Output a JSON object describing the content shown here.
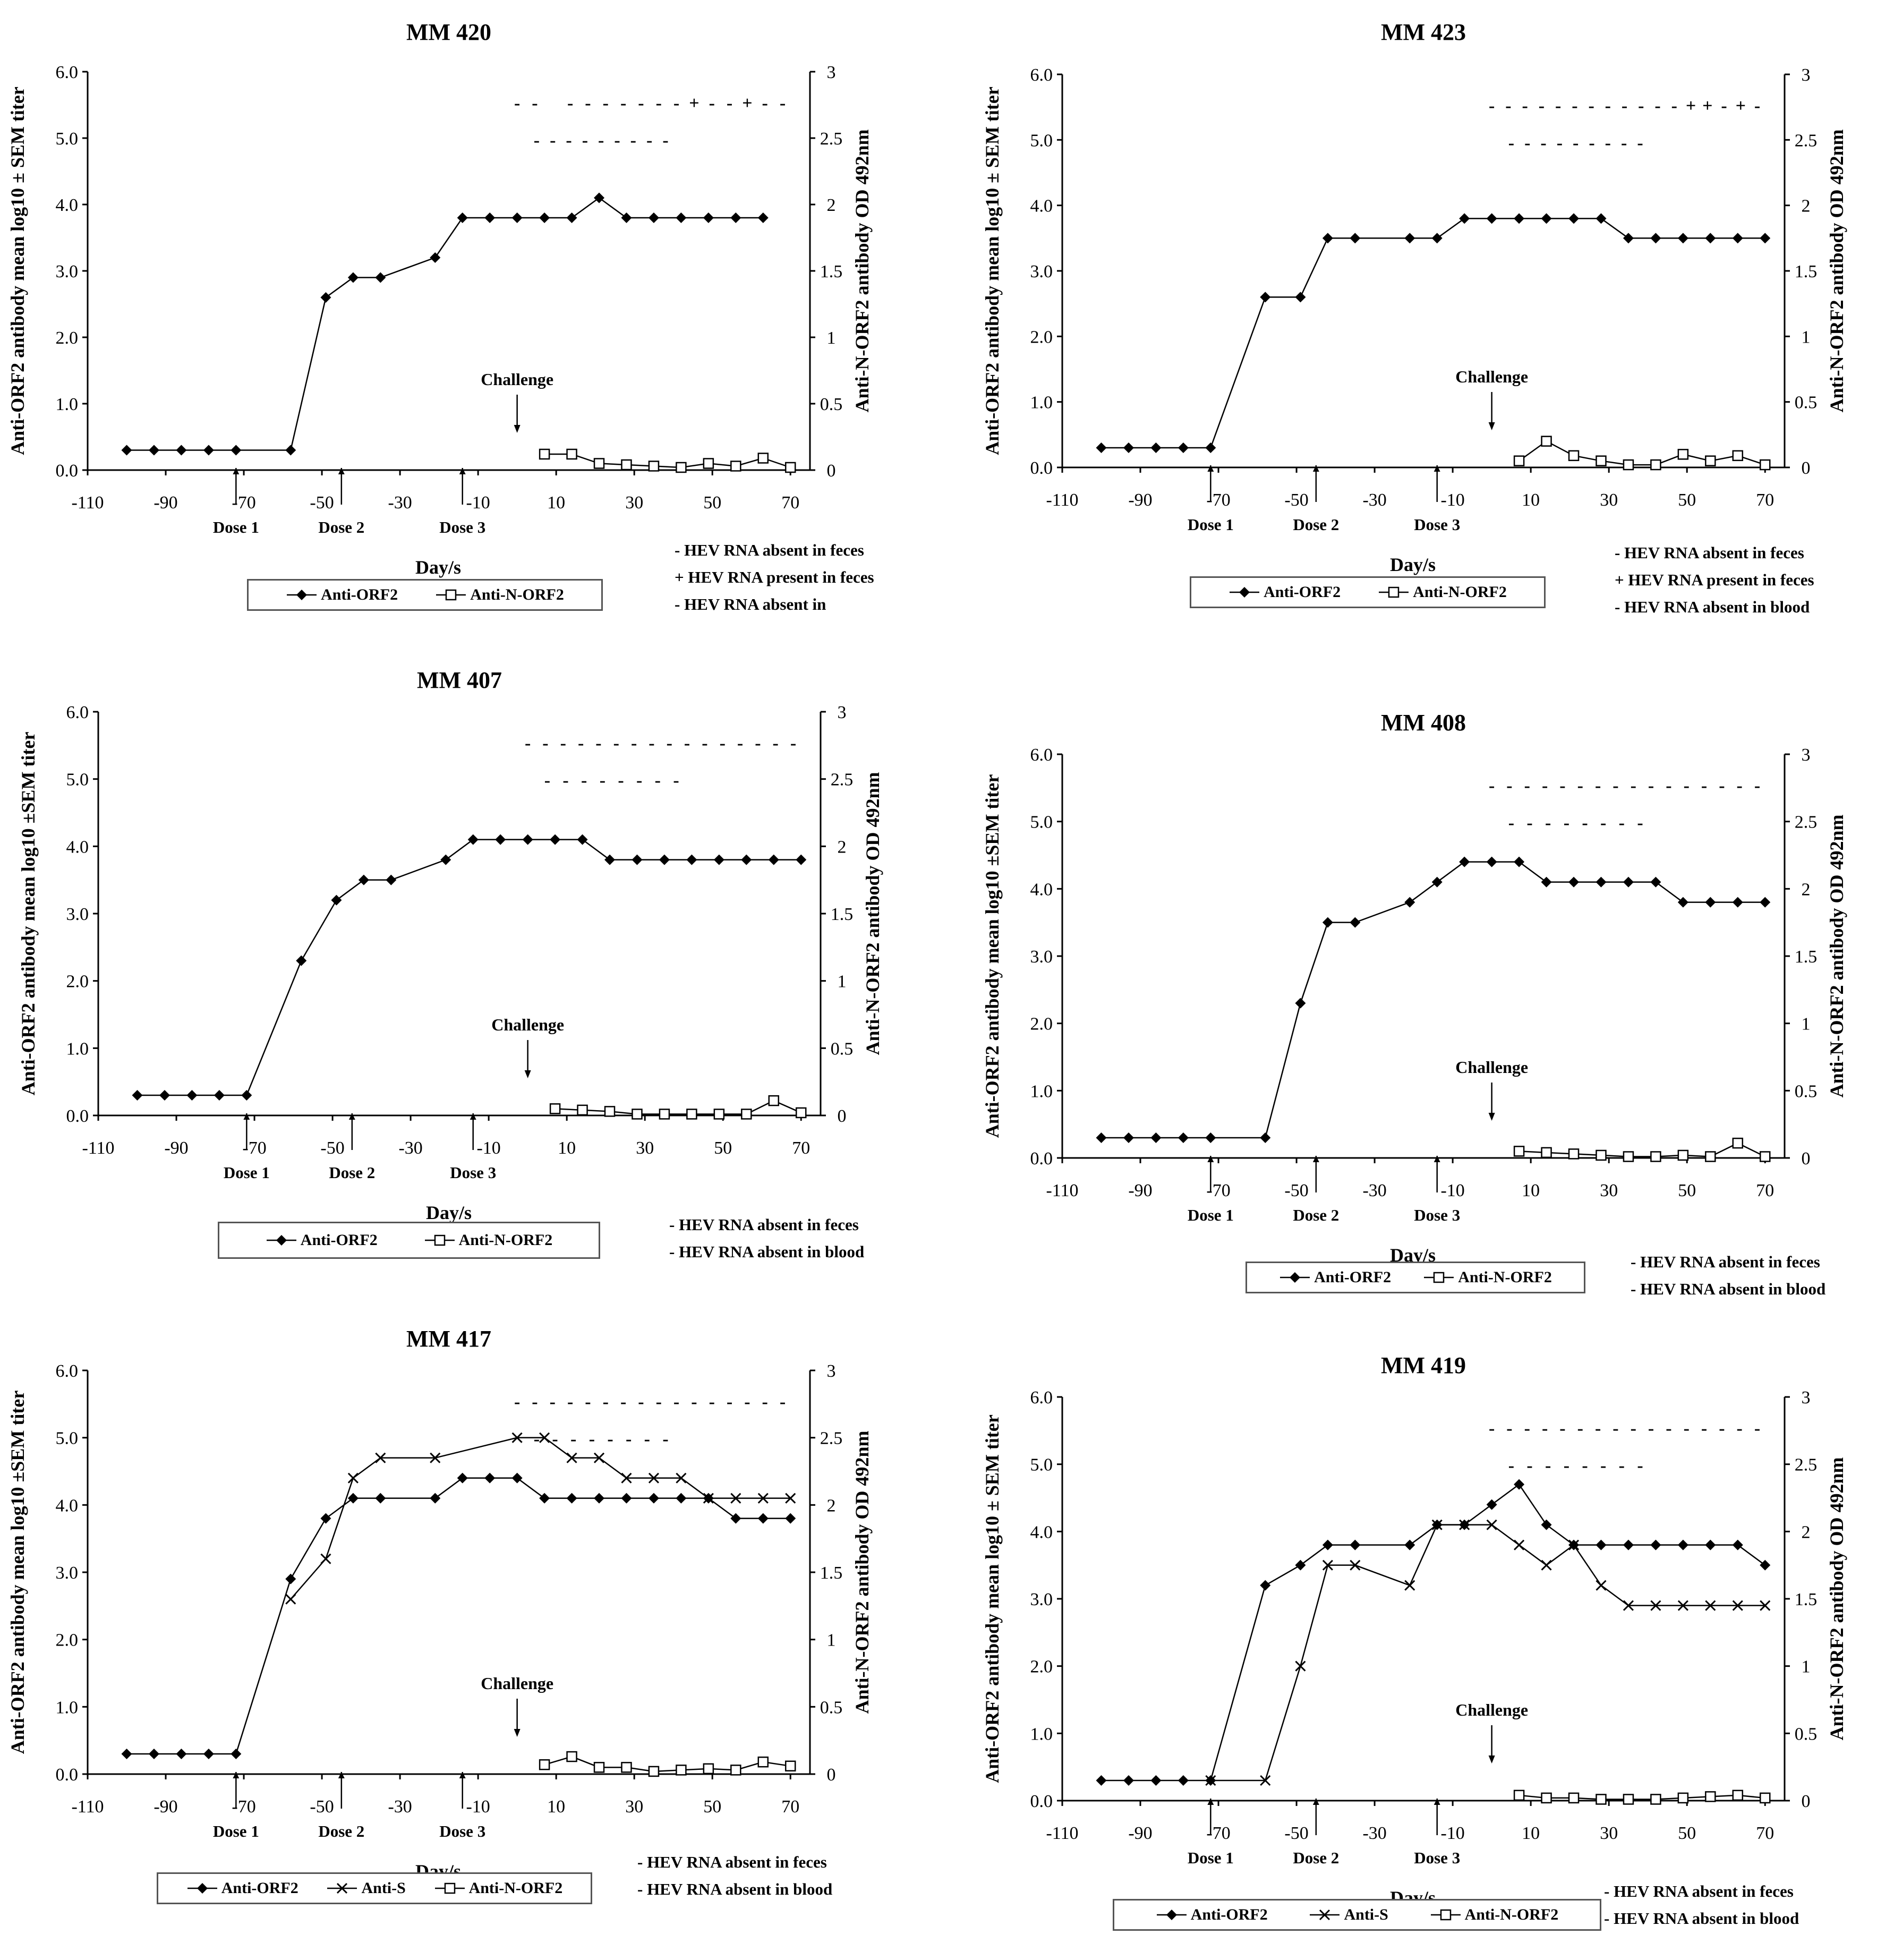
{
  "common": {
    "x_axis_label": "Day/s",
    "challenge_label": "Challenge",
    "x_ticks": [
      "-110",
      "-90",
      "-70",
      "-50",
      "-30",
      "-10",
      "10",
      "30",
      "50",
      "70"
    ],
    "left_ticks": [
      "0.0",
      "1.0",
      "2.0",
      "3.0",
      "4.0",
      "5.0",
      "6.0"
    ],
    "right_ticks": [
      "0",
      "0.5",
      "1",
      "1.5",
      "2",
      "2.5",
      "3"
    ],
    "dose_labels": [
      "Dose 1",
      "Dose 2",
      "Dose 3"
    ],
    "colors": {
      "line": "#000000",
      "background": "#ffffff",
      "legend_border": "#555555"
    }
  },
  "chart_data": [
    {
      "type": "line",
      "title": "MM 420",
      "xlabel": "Day/s",
      "ylabel": "Anti-ORF2 antibody mean log10 ± SEM titer",
      "ylabel2": "Anti-N-ORF2 antibody OD 492nm",
      "xlim": [
        -110,
        75
      ],
      "ylim": [
        0,
        6
      ],
      "ylim2": [
        0,
        3
      ],
      "series": [
        {
          "name": "Anti-ORF2",
          "marker": "diamond",
          "axis": "left",
          "x": [
            -100,
            -93,
            -86,
            -79,
            -72,
            -58,
            -49,
            -42,
            -35,
            -21,
            -14,
            -7,
            0,
            7,
            14,
            21,
            28,
            35,
            42,
            49,
            56,
            63
          ],
          "y": [
            0.3,
            0.3,
            0.3,
            0.3,
            0.3,
            0.3,
            2.6,
            2.9,
            2.9,
            3.2,
            3.8,
            3.8,
            3.8,
            3.8,
            3.8,
            4.1,
            3.8,
            3.8,
            3.8,
            3.8,
            3.8,
            3.8
          ]
        },
        {
          "name": "Anti-N-ORF2",
          "marker": "square",
          "axis": "right",
          "x": [
            7,
            14,
            21,
            28,
            35,
            42,
            49,
            56,
            63,
            70
          ],
          "y": [
            0.12,
            0.12,
            0.05,
            0.04,
            0.03,
            0.02,
            0.05,
            0.03,
            0.09,
            0.02
          ]
        }
      ],
      "doses": [
        {
          "label": "Dose 1",
          "day": -72
        },
        {
          "label": "Dose 2",
          "day": -45
        },
        {
          "label": "Dose 3",
          "day": -14
        }
      ],
      "challenge_day": 0,
      "feces_marks": [
        "-",
        "-",
        "",
        "-",
        "-",
        "-",
        "-",
        "-",
        "-",
        "-",
        "+",
        "-",
        "-",
        "+",
        "-",
        "-"
      ],
      "blood_marks": [
        "-",
        "-",
        "-",
        "-",
        "-",
        "-",
        "-",
        "-",
        "-"
      ],
      "legend": [
        "Anti-ORF2",
        "Anti-N-ORF2"
      ],
      "notes": [
        "- HEV RNA absent in feces",
        "+ HEV RNA present in feces",
        "- HEV RNA absent in"
      ]
    },
    {
      "type": "line",
      "title": "MM 423",
      "xlabel": "Day/s",
      "ylabel": "Anti-ORF2 antibody mean log10 ± SEM titer",
      "ylabel2": "Anti-N-ORF2 antibody OD 492nm",
      "xlim": [
        -110,
        75
      ],
      "ylim": [
        0,
        6
      ],
      "ylim2": [
        0,
        3
      ],
      "series": [
        {
          "name": "Anti-ORF2",
          "marker": "diamond",
          "axis": "left",
          "x": [
            -100,
            -93,
            -86,
            -79,
            -72,
            -58,
            -49,
            -42,
            -35,
            -21,
            -14,
            -7,
            0,
            7,
            14,
            21,
            28,
            35,
            42,
            49,
            56,
            63,
            70
          ],
          "y": [
            0.3,
            0.3,
            0.3,
            0.3,
            0.3,
            2.6,
            2.6,
            3.5,
            3.5,
            3.5,
            3.5,
            3.8,
            3.8,
            3.8,
            3.8,
            3.8,
            3.8,
            3.5,
            3.5,
            3.5,
            3.5,
            3.5,
            3.5
          ]
        },
        {
          "name": "Anti-N-ORF2",
          "marker": "square",
          "axis": "right",
          "x": [
            7,
            14,
            21,
            28,
            35,
            42,
            49,
            56,
            63,
            70
          ],
          "y": [
            0.05,
            0.2,
            0.09,
            0.05,
            0.02,
            0.02,
            0.1,
            0.05,
            0.09,
            0.02
          ]
        }
      ],
      "doses": [
        {
          "label": "Dose 1",
          "day": -72
        },
        {
          "label": "Dose 2",
          "day": -45
        },
        {
          "label": "Dose 3",
          "day": -14
        }
      ],
      "challenge_day": 0,
      "feces_marks": [
        "-",
        "-",
        "-",
        "-",
        "-",
        "-",
        "-",
        "-",
        "-",
        "-",
        "-",
        "-",
        "+",
        "+",
        "-",
        "+",
        "-"
      ],
      "blood_marks": [
        "-",
        "-",
        "-",
        "-",
        "-",
        "-",
        "-",
        "-",
        "-"
      ],
      "legend": [
        "Anti-ORF2",
        "Anti-N-ORF2"
      ],
      "notes": [
        "- HEV RNA absent in feces",
        "+ HEV RNA present in feces",
        "- HEV RNA absent in blood"
      ]
    },
    {
      "type": "line",
      "title": "MM 407",
      "xlabel": "Day/s",
      "ylabel": "Anti-ORF2 antibody mean log10 ±SEM titer",
      "ylabel2": "Anti-N-ORF2 antibody OD 492nm",
      "xlim": [
        -110,
        75
      ],
      "ylim": [
        0,
        6
      ],
      "ylim2": [
        0,
        3
      ],
      "series": [
        {
          "name": "Anti-ORF2",
          "marker": "diamond",
          "axis": "left",
          "x": [
            -100,
            -93,
            -86,
            -79,
            -72,
            -58,
            -49,
            -42,
            -35,
            -21,
            -14,
            -7,
            0,
            7,
            14,
            21,
            28,
            35,
            42,
            49,
            56,
            63,
            70
          ],
          "y": [
            0.3,
            0.3,
            0.3,
            0.3,
            0.3,
            2.3,
            3.2,
            3.5,
            3.5,
            3.8,
            4.1,
            4.1,
            4.1,
            4.1,
            4.1,
            3.8,
            3.8,
            3.8,
            3.8,
            3.8,
            3.8,
            3.8,
            3.8
          ]
        },
        {
          "name": "Anti-N-ORF2",
          "marker": "square",
          "axis": "right",
          "x": [
            7,
            14,
            21,
            28,
            35,
            42,
            49,
            56,
            63,
            70
          ],
          "y": [
            0.05,
            0.04,
            0.03,
            0.01,
            0.01,
            0.01,
            0.01,
            0.01,
            0.11,
            0.02
          ]
        }
      ],
      "doses": [
        {
          "label": "Dose 1",
          "day": -72
        },
        {
          "label": "Dose 2",
          "day": -45
        },
        {
          "label": "Dose 3",
          "day": -14
        }
      ],
      "challenge_day": 0,
      "feces_marks": [
        "-",
        "-",
        "-",
        "-",
        "-",
        "-",
        "-",
        "-",
        "-",
        "-",
        "-",
        "-",
        "-",
        "-",
        "-",
        "-"
      ],
      "blood_marks": [
        "-",
        "-",
        "-",
        "-",
        "-",
        "-",
        "-",
        "-"
      ],
      "legend": [
        "Anti-ORF2",
        "Anti-N-ORF2"
      ],
      "notes": [
        "- HEV RNA absent in feces",
        "- HEV RNA absent in blood"
      ]
    },
    {
      "type": "line",
      "title": "MM 408",
      "xlabel": "Day/s",
      "ylabel": "Anti-ORF2 antibody mean log10 ±SEM titer",
      "ylabel2": "Anti-N-ORF2 antibody OD 492nm",
      "xlim": [
        -110,
        75
      ],
      "ylim": [
        0,
        6
      ],
      "ylim2": [
        0,
        3
      ],
      "series": [
        {
          "name": "Anti-ORF2",
          "marker": "diamond",
          "axis": "left",
          "x": [
            -100,
            -93,
            -86,
            -79,
            -72,
            -58,
            -49,
            -42,
            -35,
            -21,
            -14,
            -7,
            0,
            7,
            14,
            21,
            28,
            35,
            42,
            49,
            56,
            63,
            70
          ],
          "y": [
            0.3,
            0.3,
            0.3,
            0.3,
            0.3,
            0.3,
            2.3,
            3.5,
            3.5,
            3.8,
            4.1,
            4.4,
            4.4,
            4.4,
            4.1,
            4.1,
            4.1,
            4.1,
            4.1,
            3.8,
            3.8,
            3.8,
            3.8
          ]
        },
        {
          "name": "Anti-N-ORF2",
          "marker": "square",
          "axis": "right",
          "x": [
            7,
            14,
            21,
            28,
            35,
            42,
            49,
            56,
            63,
            70
          ],
          "y": [
            0.05,
            0.04,
            0.03,
            0.02,
            0.01,
            0.01,
            0.02,
            0.01,
            0.11,
            0.01
          ]
        }
      ],
      "doses": [
        {
          "label": "Dose 1",
          "day": -72
        },
        {
          "label": "Dose 2",
          "day": -45
        },
        {
          "label": "Dose 3",
          "day": -14
        }
      ],
      "challenge_day": 0,
      "feces_marks": [
        "-",
        "-",
        "-",
        "-",
        "-",
        "-",
        "-",
        "-",
        "-",
        "-",
        "-",
        "-",
        "-",
        "-",
        "-",
        "-"
      ],
      "blood_marks": [
        "-",
        "-",
        "-",
        "-",
        "-",
        "-",
        "-",
        "-"
      ],
      "legend": [
        "Anti-ORF2",
        "Anti-N-ORF2"
      ],
      "notes": [
        "- HEV RNA absent in feces",
        "- HEV RNA absent in blood"
      ]
    },
    {
      "type": "line",
      "title": "MM 417",
      "xlabel": "Day/s",
      "ylabel": "Anti-ORF2 antibody mean log10 ±SEM titer",
      "ylabel2": "Anti-N-ORF2 antibody OD 492nm",
      "xlim": [
        -110,
        75
      ],
      "ylim": [
        0,
        6
      ],
      "ylim2": [
        0,
        3
      ],
      "series": [
        {
          "name": "Anti-ORF2",
          "marker": "diamond",
          "axis": "left",
          "x": [
            -100,
            -93,
            -86,
            -79,
            -72,
            -58,
            -49,
            -42,
            -35,
            -21,
            -14,
            -7,
            0,
            7,
            14,
            21,
            28,
            35,
            42,
            49,
            56,
            63,
            70
          ],
          "y": [
            0.3,
            0.3,
            0.3,
            0.3,
            0.3,
            2.9,
            3.8,
            4.1,
            4.1,
            4.1,
            4.4,
            4.4,
            4.4,
            4.1,
            4.1,
            4.1,
            4.1,
            4.1,
            4.1,
            4.1,
            3.8,
            3.8,
            3.8
          ]
        },
        {
          "name": "Anti-S",
          "marker": "cross",
          "axis": "left",
          "x": [
            -58,
            -49,
            -42,
            -35,
            -21,
            0,
            7,
            14,
            21,
            28,
            35,
            42,
            49,
            56,
            63,
            70
          ],
          "y": [
            2.6,
            3.2,
            4.4,
            4.7,
            4.7,
            5.0,
            5.0,
            4.7,
            4.7,
            4.4,
            4.4,
            4.4,
            4.1,
            4.1,
            4.1,
            4.1
          ]
        },
        {
          "name": "Anti-N-ORF2",
          "marker": "square",
          "axis": "right",
          "x": [
            7,
            14,
            21,
            28,
            35,
            42,
            49,
            56,
            63,
            70
          ],
          "y": [
            0.07,
            0.13,
            0.05,
            0.05,
            0.02,
            0.03,
            0.04,
            0.03,
            0.09,
            0.06
          ]
        }
      ],
      "doses": [
        {
          "label": "Dose 1",
          "day": -72
        },
        {
          "label": "Dose 2",
          "day": -45
        },
        {
          "label": "Dose 3",
          "day": -14
        }
      ],
      "challenge_day": 0,
      "feces_marks": [
        "-",
        "-",
        "-",
        "-",
        "-",
        "-",
        "-",
        "-",
        "-",
        "-",
        "-",
        "-",
        "-",
        "-",
        "-",
        "-"
      ],
      "blood_marks": [
        "-",
        "-",
        "-",
        "-",
        "-",
        "-",
        "-",
        "-"
      ],
      "legend": [
        "Anti-ORF2",
        "Anti-S",
        "Anti-N-ORF2"
      ],
      "notes": [
        "- HEV RNA absent in feces",
        "- HEV RNA absent in blood"
      ]
    },
    {
      "type": "line",
      "title": "MM 419",
      "xlabel": "Day/s",
      "ylabel": "Anti-ORF2 antibody mean log10 ± SEM titer",
      "ylabel2": "Anti-N-ORF2 antibody OD 492nm",
      "xlim": [
        -110,
        75
      ],
      "ylim": [
        0,
        6
      ],
      "ylim2": [
        0,
        3
      ],
      "series": [
        {
          "name": "Anti-ORF2",
          "marker": "diamond",
          "axis": "left",
          "x": [
            -100,
            -93,
            -86,
            -79,
            -72,
            -58,
            -49,
            -42,
            -35,
            -21,
            -14,
            -7,
            0,
            7,
            14,
            21,
            28,
            35,
            42,
            49,
            56,
            63,
            70
          ],
          "y": [
            0.3,
            0.3,
            0.3,
            0.3,
            0.3,
            3.2,
            3.5,
            3.8,
            3.8,
            3.8,
            4.1,
            4.1,
            4.4,
            4.7,
            4.1,
            3.8,
            3.8,
            3.8,
            3.8,
            3.8,
            3.8,
            3.8,
            3.5
          ]
        },
        {
          "name": "Anti-S",
          "marker": "cross",
          "axis": "left",
          "x": [
            -72,
            -58,
            -49,
            -42,
            -35,
            -21,
            -14,
            -7,
            0,
            7,
            14,
            21,
            28,
            35,
            42,
            49,
            56,
            63,
            70
          ],
          "y": [
            0.3,
            0.3,
            2.0,
            3.5,
            3.5,
            3.2,
            4.1,
            4.1,
            4.1,
            3.8,
            3.5,
            3.8,
            3.2,
            2.9,
            2.9,
            2.9,
            2.9,
            2.9,
            2.9
          ]
        },
        {
          "name": "Anti-N-ORF2",
          "marker": "square",
          "axis": "right",
          "x": [
            7,
            14,
            21,
            28,
            35,
            42,
            49,
            56,
            63,
            70
          ],
          "y": [
            0.04,
            0.02,
            0.02,
            0.01,
            0.01,
            0.01,
            0.02,
            0.03,
            0.04,
            0.02
          ]
        }
      ],
      "doses": [
        {
          "label": "Dose 1",
          "day": -72
        },
        {
          "label": "Dose 2",
          "day": -45
        },
        {
          "label": "Dose 3",
          "day": -14
        }
      ],
      "challenge_day": 0,
      "feces_marks": [
        "-",
        "-",
        "-",
        "-",
        "-",
        "-",
        "-",
        "-",
        "-",
        "-",
        "-",
        "-",
        "-",
        "-",
        "-",
        "-"
      ],
      "blood_marks": [
        "-",
        "-",
        "-",
        "-",
        "-",
        "-",
        "-",
        "-"
      ],
      "legend": [
        "Anti-ORF2",
        "Anti-S",
        "Anti-N-ORF2"
      ],
      "notes": [
        "- HEV RNA absent in feces",
        "- HEV RNA absent in blood"
      ]
    }
  ]
}
